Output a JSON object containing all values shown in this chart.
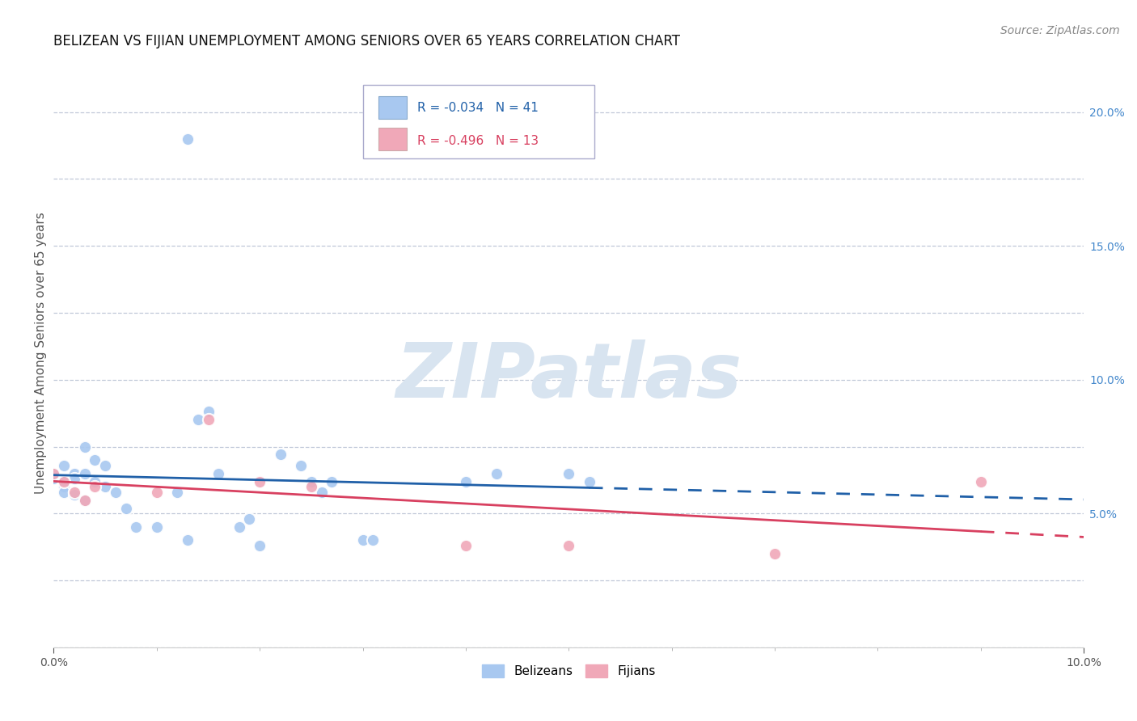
{
  "title": "BELIZEAN VS FIJIAN UNEMPLOYMENT AMONG SENIORS OVER 65 YEARS CORRELATION CHART",
  "source": "Source: ZipAtlas.com",
  "ylabel": "Unemployment Among Seniors over 65 years",
  "xlim": [
    0.0,
    0.1
  ],
  "ylim": [
    0.0,
    0.22
  ],
  "belizean_x": [
    0.0,
    0.0,
    0.001,
    0.001,
    0.001,
    0.001,
    0.002,
    0.002,
    0.002,
    0.002,
    0.003,
    0.003,
    0.003,
    0.004,
    0.004,
    0.005,
    0.005,
    0.006,
    0.007,
    0.008,
    0.01,
    0.012,
    0.013,
    0.014,
    0.015,
    0.016,
    0.018,
    0.019,
    0.02,
    0.022,
    0.024,
    0.025,
    0.026,
    0.027,
    0.03,
    0.031,
    0.04,
    0.043,
    0.05,
    0.052,
    0.013
  ],
  "belizean_y": [
    0.063,
    0.065,
    0.068,
    0.062,
    0.06,
    0.058,
    0.065,
    0.063,
    0.058,
    0.057,
    0.065,
    0.075,
    0.055,
    0.07,
    0.062,
    0.068,
    0.06,
    0.058,
    0.052,
    0.045,
    0.045,
    0.058,
    0.04,
    0.085,
    0.088,
    0.065,
    0.045,
    0.048,
    0.038,
    0.072,
    0.068,
    0.062,
    0.058,
    0.062,
    0.04,
    0.04,
    0.062,
    0.065,
    0.065,
    0.062,
    0.19
  ],
  "fijian_x": [
    0.0,
    0.001,
    0.002,
    0.003,
    0.004,
    0.01,
    0.015,
    0.02,
    0.025,
    0.04,
    0.05,
    0.07,
    0.09
  ],
  "fijian_y": [
    0.065,
    0.062,
    0.058,
    0.055,
    0.06,
    0.058,
    0.085,
    0.062,
    0.06,
    0.038,
    0.038,
    0.035,
    0.062
  ],
  "belizean_color": "#a8c8f0",
  "fijian_color": "#f0a8b8",
  "belizean_line_color": "#2060a8",
  "fijian_line_color": "#d84060",
  "R_belizean": -0.034,
  "N_belizean": 41,
  "R_fijian": -0.496,
  "N_fijian": 13,
  "marker_size": 120,
  "watermark": "ZIPatlas",
  "watermark_color": "#d8e4f0",
  "background_color": "#ffffff",
  "grid_color": "#c0c8d8",
  "title_fontsize": 12,
  "label_fontsize": 11,
  "tick_fontsize": 10,
  "legend_fontsize": 11,
  "source_fontsize": 10
}
